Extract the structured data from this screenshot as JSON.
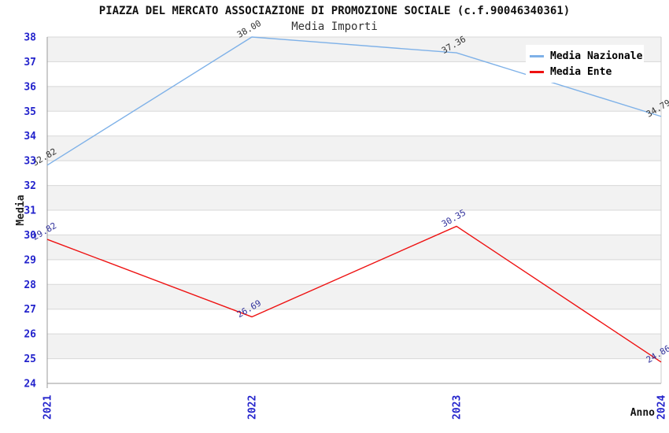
{
  "header": {
    "title": "PIAZZA DEL MERCATO ASSOCIAZIONE DI PROMOZIONE SOCIALE (c.f.90046340361)",
    "subtitle": "Media Importi"
  },
  "legend": {
    "items": [
      {
        "label": "Media Nazionale",
        "color": "#7eb1e8"
      },
      {
        "label": "Media Ente",
        "color": "#ee1111"
      }
    ]
  },
  "chart_data": {
    "type": "line",
    "title": "PIAZZA DEL MERCATO ASSOCIAZIONE DI PROMOZIONE SOCIALE (c.f.90046340361)",
    "subtitle": "Media Importi",
    "xlabel": "Anno",
    "ylabel": "Media",
    "x": [
      "2021",
      "2022",
      "2023",
      "2024"
    ],
    "series": [
      {
        "name": "Media Nazionale",
        "values": [
          32.82,
          38.0,
          37.36,
          34.79
        ],
        "color": "#7eb1e8",
        "label_color": "#333333"
      },
      {
        "name": "Media Ente",
        "values": [
          29.82,
          26.69,
          30.35,
          24.86
        ],
        "color": "#ee1111",
        "label_color": "#31319c"
      }
    ],
    "ylim": [
      24,
      38
    ],
    "ytick_step": 1,
    "grid": true,
    "band_fill": "alternating",
    "legend_position": "top-right",
    "colors": {
      "tick_label": "#2323cc",
      "grid_line": "#d8d8d8",
      "band_gray": "#f2f2f2",
      "axis_line": "#999999",
      "right_border": "#cccccc",
      "axis_title": "#222222"
    }
  }
}
